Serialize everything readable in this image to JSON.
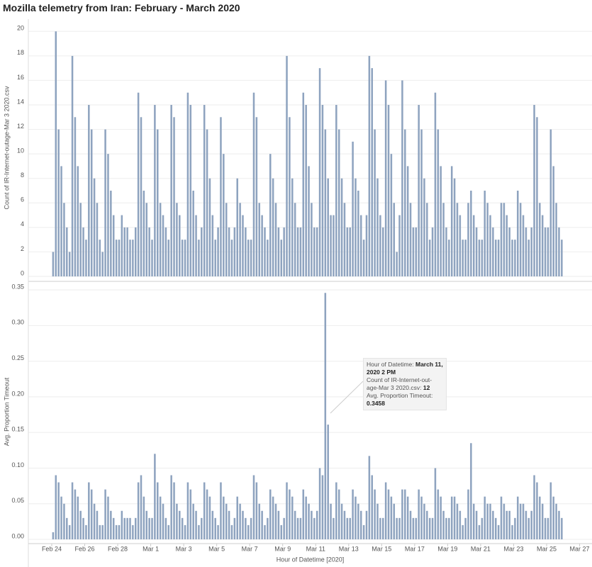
{
  "title": "Mozilla telemetry from Iran: February - March 2020",
  "chart_data": {
    "type": "bar",
    "xlabel": "Hour of Datetime [2020]",
    "xlim": [
      "2020-02-22 14:00",
      "2020-03-27 18:00"
    ],
    "xticks": [
      {
        "value": "2020-02-24 00:00",
        "label": "Feb 24"
      },
      {
        "value": "2020-02-26 00:00",
        "label": "Feb 26"
      },
      {
        "value": "2020-02-28 00:00",
        "label": "Feb 28"
      },
      {
        "value": "2020-03-01 00:00",
        "label": "Mar 1"
      },
      {
        "value": "2020-03-03 00:00",
        "label": "Mar 3"
      },
      {
        "value": "2020-03-05 00:00",
        "label": "Mar 5"
      },
      {
        "value": "2020-03-07 00:00",
        "label": "Mar 7"
      },
      {
        "value": "2020-03-09 00:00",
        "label": "Mar 9"
      },
      {
        "value": "2020-03-11 00:00",
        "label": "Mar 11"
      },
      {
        "value": "2020-03-13 00:00",
        "label": "Mar 13"
      },
      {
        "value": "2020-03-15 00:00",
        "label": "Mar 15"
      },
      {
        "value": "2020-03-17 00:00",
        "label": "Mar 17"
      },
      {
        "value": "2020-03-19 00:00",
        "label": "Mar 19"
      },
      {
        "value": "2020-03-21 00:00",
        "label": "Mar 21"
      },
      {
        "value": "2020-03-23 00:00",
        "label": "Mar 23"
      },
      {
        "value": "2020-03-25 00:00",
        "label": "Mar 25"
      },
      {
        "value": "2020-03-27 00:00",
        "label": "Mar 27"
      }
    ],
    "x": [
      "2020-02-24 02:00",
      "2020-02-24 06:00",
      "2020-02-24 10:00",
      "2020-02-24 14:00",
      "2020-02-24 18:00",
      "2020-02-24 22:00",
      "2020-02-25 02:00",
      "2020-02-25 06:00",
      "2020-02-25 10:00",
      "2020-02-25 14:00",
      "2020-02-25 18:00",
      "2020-02-25 22:00",
      "2020-02-26 02:00",
      "2020-02-26 06:00",
      "2020-02-26 10:00",
      "2020-02-26 14:00",
      "2020-02-26 18:00",
      "2020-02-26 22:00",
      "2020-02-27 02:00",
      "2020-02-27 06:00",
      "2020-02-27 10:00",
      "2020-02-27 14:00",
      "2020-02-27 18:00",
      "2020-02-27 22:00",
      "2020-02-28 02:00",
      "2020-02-28 06:00",
      "2020-02-28 10:00",
      "2020-02-28 14:00",
      "2020-02-28 18:00",
      "2020-02-28 22:00",
      "2020-02-29 02:00",
      "2020-02-29 06:00",
      "2020-02-29 10:00",
      "2020-02-29 14:00",
      "2020-02-29 18:00",
      "2020-02-29 22:00",
      "2020-03-01 02:00",
      "2020-03-01 06:00",
      "2020-03-01 10:00",
      "2020-03-01 14:00",
      "2020-03-01 18:00",
      "2020-03-01 22:00",
      "2020-03-02 02:00",
      "2020-03-02 06:00",
      "2020-03-02 10:00",
      "2020-03-02 14:00",
      "2020-03-02 18:00",
      "2020-03-02 22:00",
      "2020-03-03 02:00",
      "2020-03-03 06:00",
      "2020-03-03 10:00",
      "2020-03-03 14:00",
      "2020-03-03 18:00",
      "2020-03-03 22:00",
      "2020-03-04 02:00",
      "2020-03-04 06:00",
      "2020-03-04 10:00",
      "2020-03-04 14:00",
      "2020-03-04 18:00",
      "2020-03-04 22:00",
      "2020-03-05 02:00",
      "2020-03-05 06:00",
      "2020-03-05 10:00",
      "2020-03-05 14:00",
      "2020-03-05 18:00",
      "2020-03-05 22:00",
      "2020-03-06 02:00",
      "2020-03-06 06:00",
      "2020-03-06 10:00",
      "2020-03-06 14:00",
      "2020-03-06 18:00",
      "2020-03-06 22:00",
      "2020-03-07 02:00",
      "2020-03-07 06:00",
      "2020-03-07 10:00",
      "2020-03-07 14:00",
      "2020-03-07 18:00",
      "2020-03-07 22:00",
      "2020-03-08 02:00",
      "2020-03-08 06:00",
      "2020-03-08 10:00",
      "2020-03-08 14:00",
      "2020-03-08 18:00",
      "2020-03-08 22:00",
      "2020-03-09 02:00",
      "2020-03-09 06:00",
      "2020-03-09 10:00",
      "2020-03-09 14:00",
      "2020-03-09 18:00",
      "2020-03-09 22:00",
      "2020-03-10 02:00",
      "2020-03-10 06:00",
      "2020-03-10 10:00",
      "2020-03-10 14:00",
      "2020-03-10 18:00",
      "2020-03-10 22:00",
      "2020-03-11 02:00",
      "2020-03-11 06:00",
      "2020-03-11 10:00",
      "2020-03-11 14:00",
      "2020-03-11 18:00",
      "2020-03-11 22:00",
      "2020-03-12 02:00",
      "2020-03-12 06:00",
      "2020-03-12 10:00",
      "2020-03-12 14:00",
      "2020-03-12 18:00",
      "2020-03-12 22:00",
      "2020-03-13 02:00",
      "2020-03-13 06:00",
      "2020-03-13 10:00",
      "2020-03-13 14:00",
      "2020-03-13 18:00",
      "2020-03-13 22:00",
      "2020-03-14 02:00",
      "2020-03-14 06:00",
      "2020-03-14 10:00",
      "2020-03-14 14:00",
      "2020-03-14 18:00",
      "2020-03-14 22:00",
      "2020-03-15 02:00",
      "2020-03-15 06:00",
      "2020-03-15 10:00",
      "2020-03-15 14:00",
      "2020-03-15 18:00",
      "2020-03-15 22:00",
      "2020-03-16 02:00",
      "2020-03-16 06:00",
      "2020-03-16 10:00",
      "2020-03-16 14:00",
      "2020-03-16 18:00",
      "2020-03-16 22:00",
      "2020-03-17 02:00",
      "2020-03-17 06:00",
      "2020-03-17 10:00",
      "2020-03-17 14:00",
      "2020-03-17 18:00",
      "2020-03-17 22:00",
      "2020-03-18 02:00",
      "2020-03-18 06:00",
      "2020-03-18 10:00",
      "2020-03-18 14:00",
      "2020-03-18 18:00",
      "2020-03-18 22:00",
      "2020-03-19 02:00",
      "2020-03-19 06:00",
      "2020-03-19 10:00",
      "2020-03-19 14:00",
      "2020-03-19 18:00",
      "2020-03-19 22:00",
      "2020-03-20 02:00",
      "2020-03-20 06:00",
      "2020-03-20 10:00",
      "2020-03-20 14:00",
      "2020-03-20 18:00",
      "2020-03-20 22:00",
      "2020-03-21 02:00",
      "2020-03-21 06:00",
      "2020-03-21 10:00",
      "2020-03-21 14:00",
      "2020-03-21 18:00",
      "2020-03-21 22:00",
      "2020-03-22 02:00",
      "2020-03-22 06:00",
      "2020-03-22 10:00",
      "2020-03-22 14:00",
      "2020-03-22 18:00",
      "2020-03-22 22:00",
      "2020-03-23 02:00",
      "2020-03-23 06:00",
      "2020-03-23 10:00",
      "2020-03-23 14:00",
      "2020-03-23 18:00",
      "2020-03-23 22:00",
      "2020-03-24 02:00",
      "2020-03-24 06:00",
      "2020-03-24 10:00",
      "2020-03-24 14:00",
      "2020-03-24 18:00",
      "2020-03-24 22:00",
      "2020-03-25 02:00",
      "2020-03-25 06:00",
      "2020-03-25 10:00",
      "2020-03-25 14:00",
      "2020-03-25 18:00",
      "2020-03-25 22:00"
    ],
    "ylim": [
      0,
      21
    ],
    "yticks": [
      0,
      2,
      4,
      6,
      8,
      10,
      12,
      14,
      16,
      18,
      20
    ],
    "y2lim": [
      0,
      0.358
    ],
    "y2ticks": [
      {
        "value": 0,
        "label": "0.00"
      },
      {
        "value": 0.05,
        "label": "0.05"
      },
      {
        "value": 0.1,
        "label": "0.10"
      },
      {
        "value": 0.15,
        "label": "0.15"
      },
      {
        "value": 0.2,
        "label": "0.20"
      },
      {
        "value": 0.25,
        "label": "0.25"
      },
      {
        "value": 0.3,
        "label": "0.30"
      },
      {
        "value": 0.35,
        "label": "0.35"
      }
    ],
    "grid": true,
    "series": [
      {
        "name": "Count of IR-Internet-outage-Mar 3 2020.csv",
        "color": "#8ea3bf",
        "values": [
          2,
          20,
          12,
          9,
          6,
          4,
          2,
          18,
          13,
          9,
          6,
          4,
          3,
          14,
          12,
          8,
          6,
          3,
          2,
          12,
          10,
          7,
          5,
          3,
          3,
          5,
          4,
          4,
          3,
          3,
          4,
          15,
          13,
          7,
          6,
          4,
          3,
          14,
          12,
          6,
          5,
          4,
          3,
          14,
          13,
          6,
          5,
          3,
          3,
          15,
          14,
          7,
          5,
          3,
          4,
          14,
          12,
          8,
          5,
          3,
          4,
          13,
          10,
          6,
          4,
          3,
          4,
          8,
          6,
          5,
          4,
          3,
          3,
          15,
          13,
          6,
          5,
          4,
          3,
          10,
          8,
          6,
          4,
          3,
          4,
          18,
          13,
          8,
          6,
          4,
          4,
          15,
          14,
          9,
          6,
          4,
          4,
          17,
          14,
          12,
          8,
          5,
          5,
          14,
          12,
          8,
          6,
          4,
          4,
          11,
          8,
          7,
          5,
          3,
          5,
          18,
          17,
          12,
          8,
          5,
          4,
          16,
          14,
          10,
          6,
          2,
          5,
          16,
          12,
          9,
          6,
          4,
          4,
          14,
          12,
          8,
          6,
          3,
          4,
          15,
          12,
          9,
          6,
          4,
          3,
          9,
          8,
          6,
          5,
          3,
          3,
          6,
          7,
          5,
          4,
          3,
          3,
          7,
          6,
          5,
          4,
          3,
          3,
          6,
          6,
          5,
          4,
          3,
          3,
          7,
          6,
          5,
          4,
          3,
          4,
          14,
          13,
          6,
          5,
          4,
          4,
          12,
          9,
          6,
          4,
          3
        ]
      },
      {
        "name": "Avg. Proportion Timeout",
        "color": "#8ea3bf",
        "axis": "y2",
        "values": [
          0.01,
          0.09,
          0.08,
          0.06,
          0.05,
          0.03,
          0.02,
          0.08,
          0.07,
          0.06,
          0.04,
          0.03,
          0.02,
          0.08,
          0.07,
          0.05,
          0.04,
          0.02,
          0.02,
          0.07,
          0.06,
          0.04,
          0.03,
          0.02,
          0.02,
          0.04,
          0.03,
          0.03,
          0.03,
          0.02,
          0.03,
          0.08,
          0.09,
          0.06,
          0.04,
          0.03,
          0.03,
          0.12,
          0.08,
          0.06,
          0.05,
          0.03,
          0.02,
          0.09,
          0.08,
          0.05,
          0.04,
          0.03,
          0.02,
          0.08,
          0.07,
          0.05,
          0.04,
          0.02,
          0.03,
          0.08,
          0.07,
          0.06,
          0.04,
          0.03,
          0.02,
          0.08,
          0.06,
          0.05,
          0.04,
          0.02,
          0.03,
          0.06,
          0.05,
          0.04,
          0.03,
          0.02,
          0.03,
          0.09,
          0.08,
          0.05,
          0.04,
          0.02,
          0.03,
          0.07,
          0.06,
          0.05,
          0.04,
          0.02,
          0.03,
          0.08,
          0.07,
          0.06,
          0.04,
          0.03,
          0.03,
          0.07,
          0.06,
          0.05,
          0.04,
          0.03,
          0.04,
          0.1,
          0.09,
          0.3458,
          0.161,
          0.05,
          0.03,
          0.08,
          0.07,
          0.05,
          0.04,
          0.03,
          0.03,
          0.07,
          0.06,
          0.05,
          0.04,
          0.02,
          0.04,
          0.117,
          0.09,
          0.07,
          0.05,
          0.03,
          0.03,
          0.08,
          0.07,
          0.06,
          0.05,
          0.03,
          0.03,
          0.07,
          0.07,
          0.06,
          0.04,
          0.03,
          0.03,
          0.07,
          0.06,
          0.05,
          0.04,
          0.03,
          0.03,
          0.1,
          0.07,
          0.06,
          0.04,
          0.03,
          0.03,
          0.06,
          0.06,
          0.05,
          0.04,
          0.02,
          0.03,
          0.07,
          0.135,
          0.05,
          0.04,
          0.02,
          0.03,
          0.06,
          0.05,
          0.05,
          0.04,
          0.03,
          0.02,
          0.06,
          0.05,
          0.04,
          0.04,
          0.02,
          0.03,
          0.06,
          0.05,
          0.05,
          0.04,
          0.03,
          0.04,
          0.09,
          0.08,
          0.06,
          0.05,
          0.03,
          0.03,
          0.08,
          0.06,
          0.05,
          0.04,
          0.03
        ]
      }
    ],
    "tooltip": {
      "hour_label": "Hour of Datetime:",
      "hour": "March 11, 2020 2 PM",
      "count_label": "Count of IR-Internet-out-age-Mar 3 2020.csv:",
      "proportion_label": "Avg. Proportion Timeout:"
    }
  }
}
